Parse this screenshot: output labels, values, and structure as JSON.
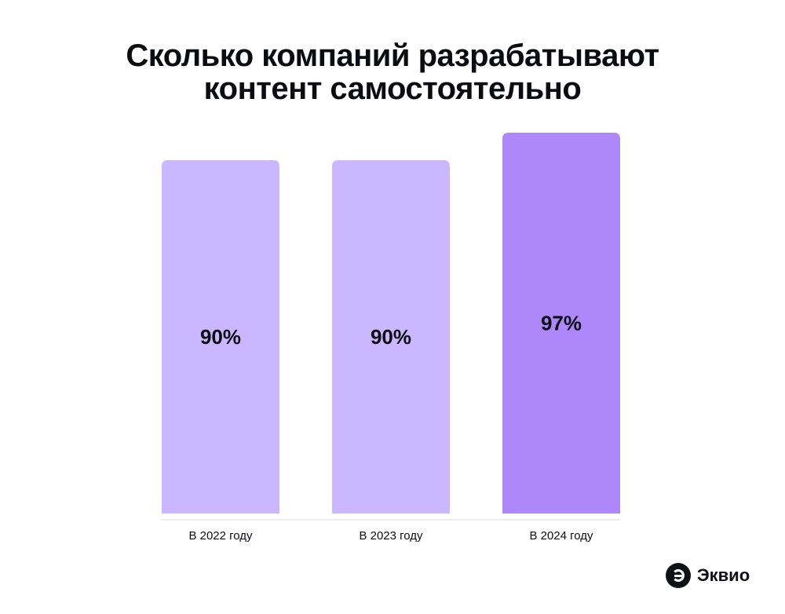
{
  "title_lines": [
    "Сколько компаний разрабатывают",
    "контент самостоятельно"
  ],
  "chart_data": {
    "type": "bar",
    "categories": [
      "В 2022 году",
      "В 2023 году",
      "В 2024 году"
    ],
    "values": [
      90,
      90,
      97
    ],
    "data_labels": [
      "90%",
      "90%",
      "97%"
    ],
    "unit": "%",
    "colors": [
      "#cbb7ff",
      "#cbb7ff",
      "#ae88fb"
    ],
    "grid": false,
    "ylim": [
      0,
      100
    ]
  },
  "brand": {
    "name": "Эквио",
    "icon": "ekvio-logo-icon"
  }
}
